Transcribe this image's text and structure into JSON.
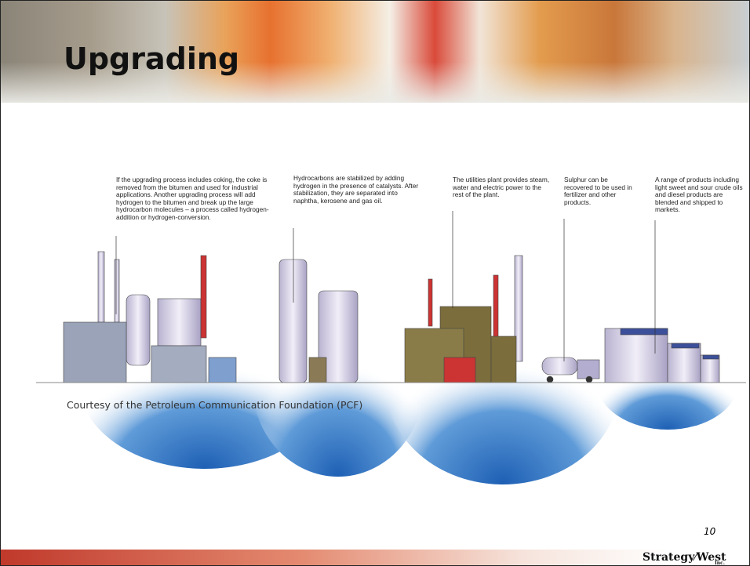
{
  "header": {
    "title": "Upgrading"
  },
  "annotations": [
    "If the upgrading process includes coking, the coke is removed from the bitumen and used for industrial applications. Another upgrading process will add hydrogen to the bitumen and break up the large hydrocarbon molecules – a process called hydrogen-addition or hydrogen-conversion.",
    "Hydrocarbons are stabilized by adding hydrogen in the presence of catalysts. After stabilization, they are separated into naphtha, kerosene and gas oil.",
    "The utilities plant provides steam, water and electric power to the rest of the plant.",
    "Sulphur can be recovered to be used in fertilizer and other products.",
    "A range of products including light sweet and sour crude oils and diesel products are blended and shipped to markets."
  ],
  "caption": "Courtesy of the Petroleum Communication Foundation (PCF)",
  "page_number": "10",
  "logo": {
    "left": "Strategy",
    "right": "West",
    "suffix": "Inc."
  }
}
